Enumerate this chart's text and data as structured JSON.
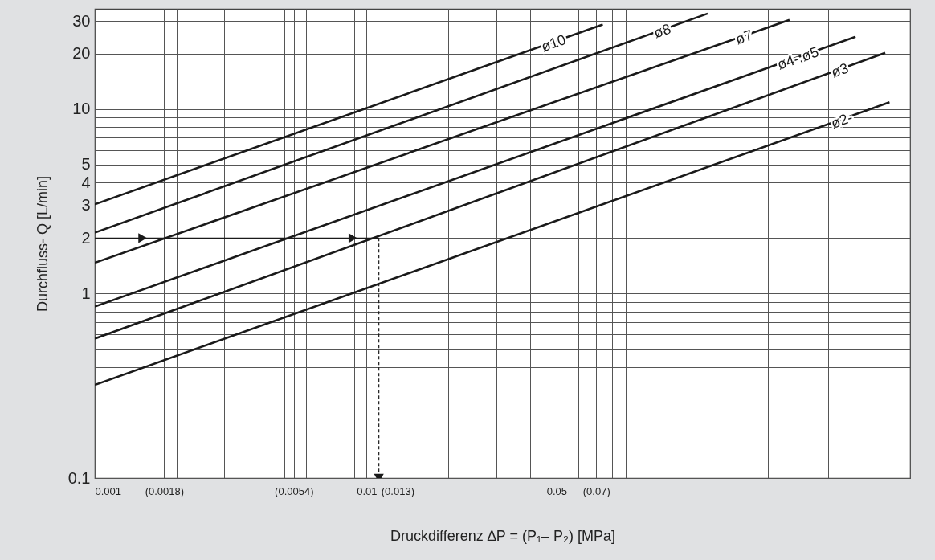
{
  "chart_data": {
    "type": "line",
    "xlabel": "Druckdifferenz ∆P = (P₁– P₂) [MPa]",
    "ylabel": "Durchfluss- Q [L/min]",
    "log": "xy",
    "grid": true,
    "xlim": [
      0.001,
      1
    ],
    "ylim": [
      0.1,
      35
    ],
    "xticks": [
      0.001,
      {
        "value": 0.0018,
        "label": "(0.0018)"
      },
      {
        "value": 0.002,
        "label": null
      },
      {
        "value": 0.003,
        "label": null
      },
      {
        "value": 0.004,
        "label": null
      },
      {
        "value": 0.005,
        "label": null
      },
      {
        "value": 0.0054,
        "label": "(0.0054)"
      },
      {
        "value": 0.006,
        "label": null
      },
      {
        "value": 0.007,
        "label": null
      },
      {
        "value": 0.008,
        "label": null
      },
      {
        "value": 0.009,
        "label": null
      },
      0.01,
      {
        "value": 0.013,
        "label": "(0.013)"
      },
      {
        "value": 0.02,
        "label": null
      },
      {
        "value": 0.03,
        "label": null
      },
      {
        "value": 0.04,
        "label": null
      },
      0.05,
      {
        "value": 0.06,
        "label": null
      },
      {
        "value": 0.07,
        "label": "(0.07)"
      },
      {
        "value": 0.08,
        "label": null
      },
      {
        "value": 0.09,
        "label": null
      },
      {
        "value": 0.1,
        "label": null
      },
      {
        "value": 0.2,
        "label": null
      },
      {
        "value": 0.3,
        "label": null
      },
      {
        "value": 0.4,
        "label": null
      },
      {
        "value": 0.5,
        "label": null
      },
      {
        "value": 1,
        "label": null
      }
    ],
    "yticks": [
      0.1,
      {
        "value": 0.2,
        "label": null
      },
      {
        "value": 0.3,
        "label": null
      },
      {
        "value": 0.4,
        "label": null
      },
      {
        "value": 0.5,
        "label": null
      },
      {
        "value": 0.6,
        "label": null
      },
      {
        "value": 0.7,
        "label": null
      },
      {
        "value": 0.8,
        "label": null
      },
      {
        "value": 0.9,
        "label": null
      },
      1,
      2,
      3,
      4,
      5,
      {
        "value": 6,
        "label": null
      },
      {
        "value": 7,
        "label": null
      },
      {
        "value": 8,
        "label": null
      },
      {
        "value": 9,
        "label": null
      },
      10,
      20,
      30
    ],
    "series": [
      {
        "name": "ø10",
        "color": "#1a1a1a",
        "x": [
          0.001,
          0.074
        ],
        "values": [
          3.05,
          28.8
        ]
      },
      {
        "name": "ø8",
        "color": "#1a1a1a",
        "x": [
          0.001,
          0.18
        ],
        "values": [
          2.14,
          33
        ]
      },
      {
        "name": "ø7",
        "color": "#1a1a1a",
        "x": [
          0.001,
          0.36
        ],
        "values": [
          1.47,
          30.5
        ]
      },
      {
        "name": "ø4-,ø5",
        "color": "#1a1a1a",
        "x": [
          0.001,
          0.63
        ],
        "values": [
          0.85,
          24.7
        ]
      },
      {
        "name": "ø3",
        "color": "#1a1a1a",
        "x": [
          0.001,
          0.81
        ],
        "values": [
          0.57,
          20.2
        ]
      },
      {
        "name": "ø2-",
        "color": "#1a1a1a",
        "x": [
          0.001,
          0.84
        ],
        "values": [
          0.32,
          10.9
        ]
      },
      {
        "color": "#1a1a1a",
        "x": [
          0.001,
          0.0015,
          0.0089,
          0.0111
        ],
        "values": [
          2,
          2,
          2,
          2
        ]
      },
      {
        "color": "#1a1a1a",
        "x": [
          0.0111,
          0.0111
        ],
        "values": [
          2,
          0.1
        ],
        "line_style": "dashed"
      }
    ]
  }
}
